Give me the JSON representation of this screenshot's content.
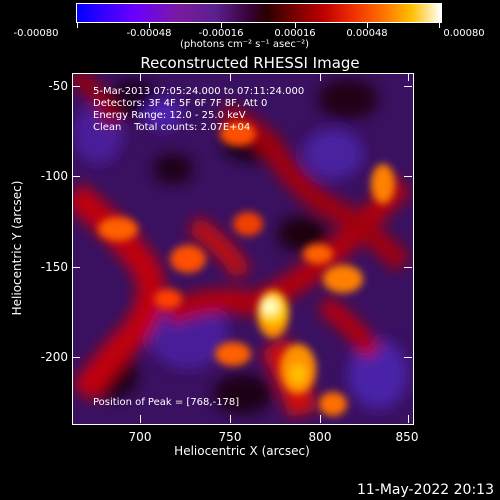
{
  "colorbar": {
    "ticks": [
      "-0.00080",
      "-0.00048",
      "-0.00016",
      "0.00016",
      "0.00048",
      "0.00080"
    ],
    "units": "(photons cm⁻² s⁻¹ asec⁻²)"
  },
  "title": "Reconstructed RHESSI Image",
  "info": {
    "time_range": "5-Mar-2013 07:05:24.000 to 07:11:24.000",
    "detectors": "Detectors: 3F 4F 5F 6F 7F 8F, Att 0",
    "energy": "Energy Range: 12.0 - 25.0 keV",
    "clean": "Clean    Total counts: 2.07E+04",
    "peak": "Position of Peak = [768,-178]"
  },
  "axes": {
    "xlabel": "Heliocentric X (arcsec)",
    "ylabel": "Heliocentric Y (arcsec)",
    "xticks": [
      "700",
      "750",
      "800",
      "850"
    ],
    "yticks": [
      "-50",
      "-100",
      "-150",
      "-200"
    ]
  },
  "timestamp": "11-May-2022 20:13"
}
